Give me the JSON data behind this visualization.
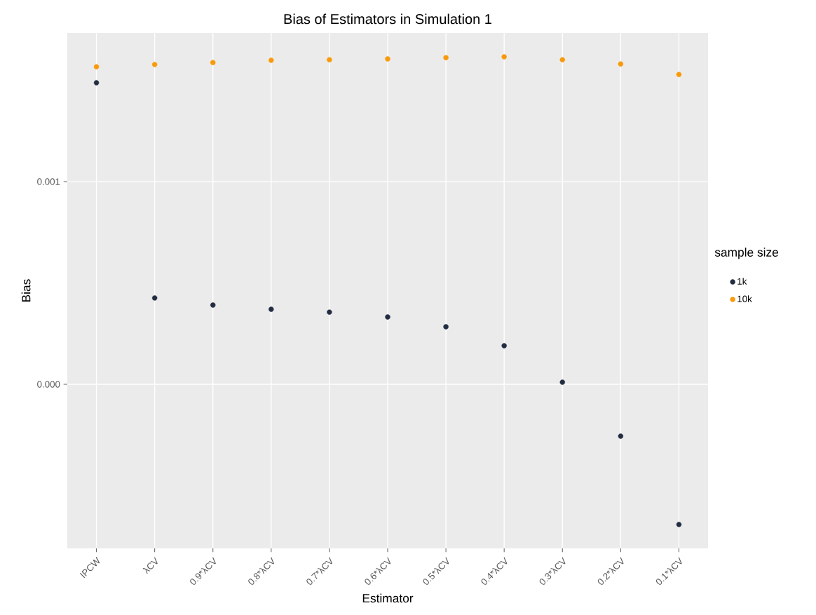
{
  "chart_data": {
    "type": "scatter",
    "title": "Bias of Estimators in Simulation 1",
    "xlabel": "Estimator",
    "ylabel": "Bias",
    "legend_title": "sample size",
    "categories": [
      "IPCW",
      "λCV",
      "0.9*λCV",
      "0.8*λCV",
      "0.7*λCV",
      "0.6*λCV",
      "0.5*λCV",
      "0.4*λCV",
      "0.3*λCV",
      "0.2*λCV",
      "0.1*λCV"
    ],
    "series": [
      {
        "name": "1k",
        "color": "#232d42",
        "values": [
          0.001488,
          0.000426,
          0.000391,
          0.00037,
          0.000356,
          0.000332,
          0.000284,
          0.00019,
          1e-05,
          -0.000256,
          -0.000692
        ]
      },
      {
        "name": "10k",
        "color": "#f99a0b",
        "values": [
          0.001567,
          0.001578,
          0.001588,
          0.001599,
          0.001602,
          0.001606,
          0.001612,
          0.001616,
          0.001602,
          0.001581,
          0.001529
        ]
      }
    ],
    "ylim": [
      -0.00081,
      0.001734
    ],
    "yticks": [
      {
        "value": 0,
        "label": "0.000"
      },
      {
        "value": 0.001,
        "label": "0.001"
      }
    ],
    "grid": true,
    "legend": "right",
    "marker": "circle"
  }
}
